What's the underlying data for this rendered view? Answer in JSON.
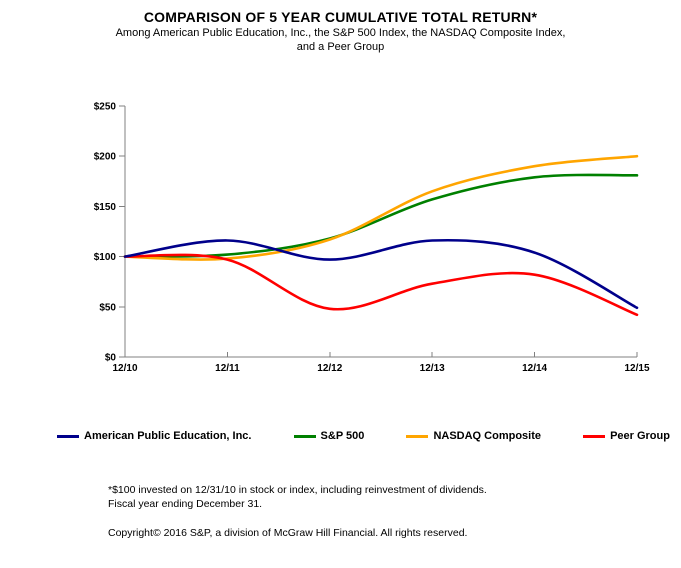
{
  "title": "COMPARISON OF 5 YEAR CUMULATIVE TOTAL RETURN*",
  "subtitle_line1": "Among American Public Education, Inc., the S&P 500 Index, the NASDAQ Composite Index,",
  "subtitle_line2": "and a Peer Group",
  "chart_data": {
    "type": "line",
    "title": "COMPARISON OF 5 YEAR CUMULATIVE TOTAL RETURN*",
    "x_labels": [
      "12/10",
      "12/11",
      "12/12",
      "12/13",
      "12/14",
      "12/15"
    ],
    "y_ticks": [
      {
        "label": "$250",
        "value": 250
      },
      {
        "label": "$200",
        "value": 200
      },
      {
        "label": "$150",
        "value": 150
      },
      {
        "label": "$100",
        "value": 100
      },
      {
        "label": "$50",
        "value": 50
      },
      {
        "label": "$0",
        "value": 0
      }
    ],
    "ylim": [
      0,
      250
    ],
    "grid": false,
    "legend_position": "bottom",
    "series": [
      {
        "name": "American Public Education, Inc.",
        "color": "#00008B",
        "values": [
          100,
          116,
          97,
          116,
          104,
          49
        ]
      },
      {
        "name": "S&P 500",
        "color": "#008000",
        "values": [
          100,
          102,
          118,
          157,
          179,
          181
        ]
      },
      {
        "name": "NASDAQ Composite",
        "color": "#FFA500",
        "values": [
          100,
          98,
          117,
          165,
          190,
          200
        ]
      },
      {
        "name": "Peer Group",
        "color": "#FF0000",
        "values": [
          100,
          97,
          48,
          73,
          82,
          42
        ]
      }
    ]
  },
  "footnotes": {
    "line1": "*$100 invested on 12/31/10 in stock or index, including reinvestment of dividends.",
    "line2": "Fiscal year ending December 31.",
    "copyright": "Copyright© 2016 S&P, a division of McGraw Hill Financial. All rights reserved."
  }
}
